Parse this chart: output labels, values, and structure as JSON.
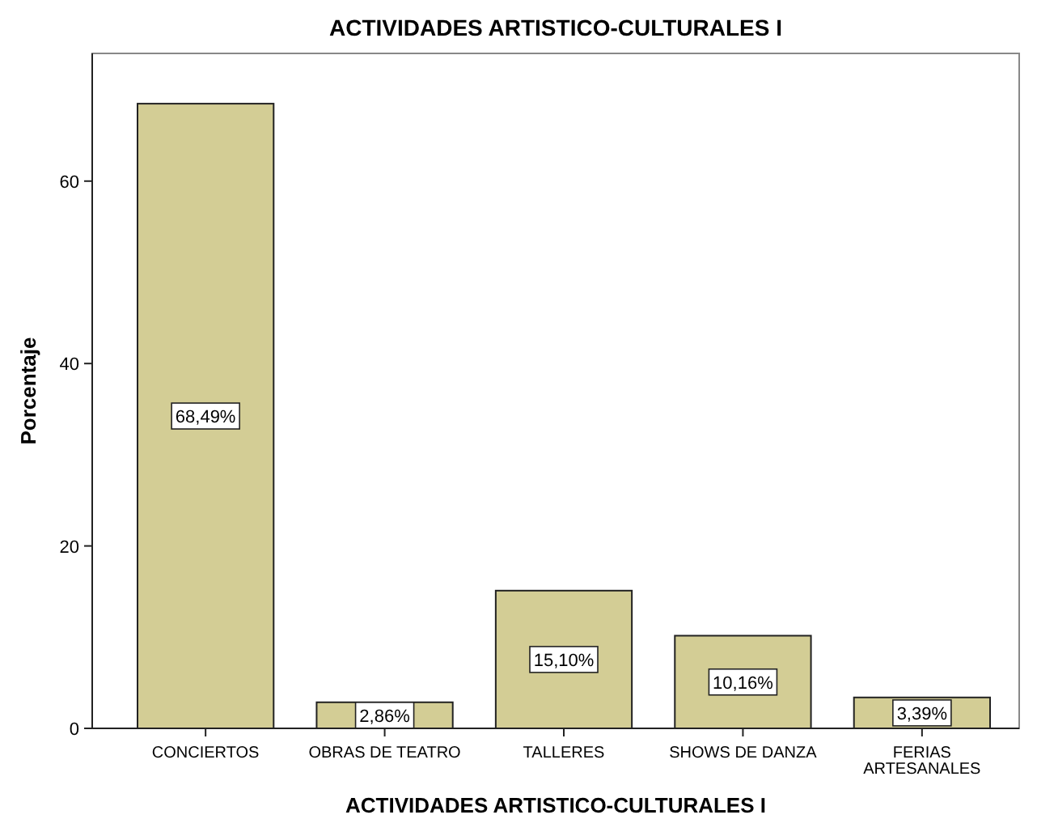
{
  "chart_data": {
    "type": "bar",
    "title": "ACTIVIDADES ARTISTICO-CULTURALES I",
    "xlabel": "ACTIVIDADES ARTISTICO-CULTURALES I",
    "ylabel": "Porcentaje",
    "categories": [
      "CONCIERTOS",
      "OBRAS DE TEATRO",
      "TALLERES",
      "SHOWS DE DANZA",
      "FERIAS ARTESANALES"
    ],
    "values": [
      68.49,
      2.86,
      15.1,
      10.16,
      3.39
    ],
    "value_labels": [
      "68,49%",
      "2,86%",
      "15,10%",
      "10,16%",
      "3,39%"
    ],
    "color": "#d3cd95",
    "ylim": [
      0,
      74
    ],
    "yticks": [
      0,
      20,
      40,
      60
    ],
    "grid": false
  }
}
